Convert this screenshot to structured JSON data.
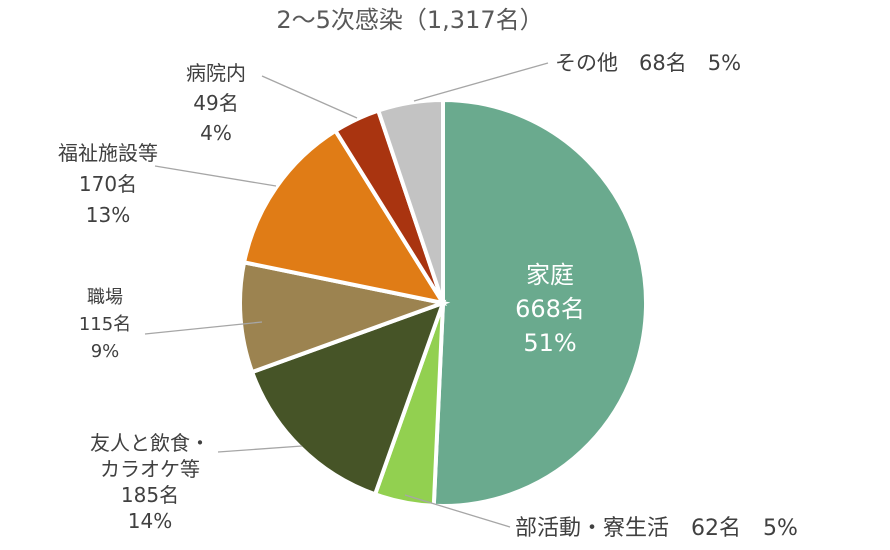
{
  "chart_data": {
    "type": "pie",
    "title": "2～5次感染（1,317名）",
    "total": 1317,
    "start_angle_deg": 0,
    "direction": "clockwise",
    "slices": [
      {
        "label": "家庭",
        "count": 668,
        "count_label": "668名",
        "percent": 51,
        "percent_label": "51%",
        "color": "#6aaa8e"
      },
      {
        "label": "部活動・寮生活",
        "count": 62,
        "count_label": "62名",
        "percent": 5,
        "percent_label": "5%",
        "color": "#92d050"
      },
      {
        "label": "友人と飲食・カラオケ等",
        "label_lines": [
          "友人と飲食・",
          "カラオケ等"
        ],
        "count": 185,
        "count_label": "185名",
        "percent": 14,
        "percent_label": "14%",
        "color": "#465427"
      },
      {
        "label": "職場",
        "count": 115,
        "count_label": "115名",
        "percent": 9,
        "percent_label": "9%",
        "color": "#9c8350"
      },
      {
        "label": "福祉施設等",
        "count": 170,
        "count_label": "170名",
        "percent": 13,
        "percent_label": "13%",
        "color": "#e07c16"
      },
      {
        "label": "病院内",
        "count": 49,
        "count_label": "49名",
        "percent": 4,
        "percent_label": "4%",
        "color": "#a93410"
      },
      {
        "label": "その他",
        "count": 68,
        "count_label": "68名",
        "percent": 5,
        "percent_label": "5%",
        "color": "#c3c3c3"
      }
    ]
  }
}
